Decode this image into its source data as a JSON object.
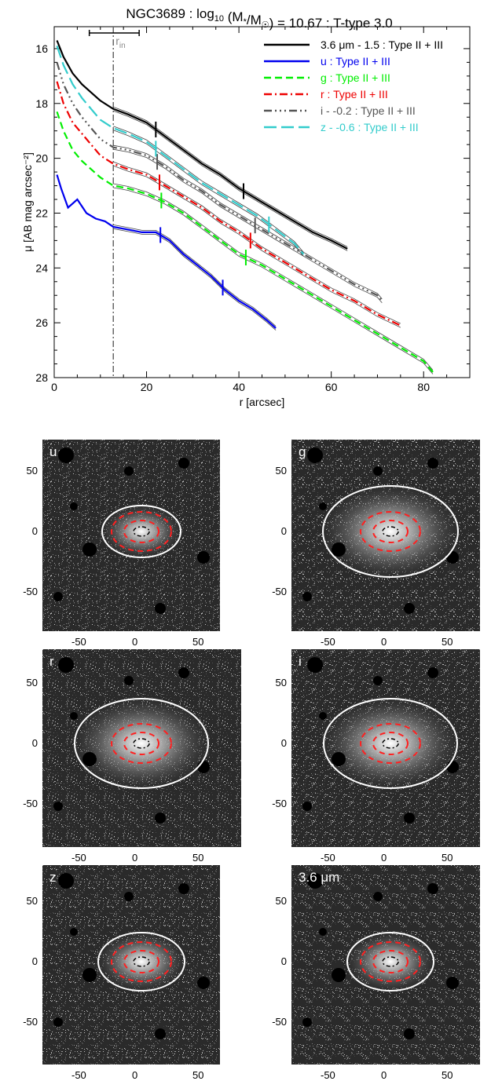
{
  "chart_data": [
    {
      "type": "line",
      "title": "NGC3689 : log10 (M*/M☉) = 10.67 : T-type 3.0",
      "title_parts": {
        "pre": "NGC3689 : log",
        "sub": "10",
        "mid": " (M",
        "sub2": "*",
        "mid2": "/M",
        "sub3": "☉",
        "post": ") = 10.67 : T-type 3.0"
      },
      "xlabel": "r [arcsec]",
      "ylabel": "μ [AB mag arcsec⁻²]",
      "xlim": [
        0,
        90
      ],
      "ylim": [
        28,
        15.2
      ],
      "y_inverted": true,
      "xticks": [
        0,
        20,
        40,
        60,
        80
      ],
      "yticks": [
        16,
        18,
        20,
        22,
        24,
        26,
        28
      ],
      "r_in": {
        "label": "r",
        "sub": "in",
        "value": 12.8,
        "bar": [
          7.6,
          18.4
        ]
      },
      "series": [
        {
          "name": "3.6 μm - 1.5 : Type II + III",
          "color": "#000000",
          "dash": "solid",
          "breaks": [
            22.0,
            41.0
          ],
          "x": [
            0.6,
            2,
            4,
            6,
            8,
            10,
            12.8,
            16,
            20,
            24,
            28,
            32,
            36,
            40,
            44,
            48,
            52,
            56,
            60,
            63.5
          ],
          "y": [
            15.7,
            16.3,
            16.9,
            17.3,
            17.6,
            17.9,
            18.2,
            18.4,
            18.7,
            19.2,
            19.7,
            20.2,
            20.6,
            21.1,
            21.5,
            21.9,
            22.3,
            22.7,
            23.0,
            23.3
          ]
        },
        {
          "name": "u : Type II + III",
          "color": "#0000ee",
          "dash": "solid",
          "breaks": [
            23.0,
            36.5
          ],
          "x": [
            0.6,
            1.5,
            3,
            5,
            7,
            9,
            11,
            12.8,
            16,
            19,
            22,
            25,
            28,
            31,
            34,
            37,
            40,
            43,
            46,
            48
          ],
          "y": [
            20.6,
            21.1,
            21.8,
            21.5,
            22.0,
            22.2,
            22.3,
            22.5,
            22.6,
            22.7,
            22.7,
            23.0,
            23.5,
            23.9,
            24.3,
            24.8,
            25.2,
            25.5,
            25.9,
            26.2
          ]
        },
        {
          "name": "g : Type II + III",
          "color": "#00ee00",
          "dash": "dashed",
          "breaks": [
            23.2,
            41.5
          ],
          "x": [
            0.6,
            2,
            4,
            6,
            8,
            10,
            12.8,
            16,
            20,
            24,
            28,
            32,
            36,
            40,
            45,
            50,
            55,
            60,
            65,
            70,
            75,
            80,
            82
          ],
          "y": [
            18.3,
            19.0,
            19.7,
            20.1,
            20.4,
            20.7,
            21.0,
            21.1,
            21.3,
            21.6,
            22.0,
            22.5,
            23.0,
            23.5,
            23.9,
            24.4,
            24.9,
            25.4,
            25.9,
            26.4,
            26.9,
            27.4,
            27.8
          ]
        },
        {
          "name": "r : Type II + III",
          "color": "#ee0000",
          "dash": "dashdot",
          "breaks": [
            22.8,
            42.5
          ],
          "x": [
            0.6,
            2,
            4,
            6,
            8,
            10,
            12.8,
            16,
            20,
            24,
            28,
            32,
            36,
            40,
            45,
            50,
            55,
            60,
            65,
            70,
            75
          ],
          "y": [
            17.2,
            18.0,
            18.7,
            19.1,
            19.5,
            19.9,
            20.2,
            20.4,
            20.6,
            21.0,
            21.4,
            21.8,
            22.3,
            22.7,
            23.3,
            23.8,
            24.3,
            24.8,
            25.2,
            25.7,
            26.1
          ]
        },
        {
          "name": "i - -0.2 : Type II + III",
          "color": "#555555",
          "dash": "dashdotdotdot",
          "breaks": [
            22.3,
            43.5
          ],
          "x": [
            0.6,
            2,
            4,
            6,
            8,
            10,
            12.8,
            16,
            20,
            24,
            28,
            32,
            36,
            40,
            45,
            50,
            55,
            60,
            65,
            70,
            71
          ],
          "y": [
            16.5,
            17.3,
            18.0,
            18.5,
            18.9,
            19.3,
            19.6,
            19.7,
            19.9,
            20.3,
            20.8,
            21.2,
            21.7,
            22.1,
            22.6,
            23.1,
            23.6,
            24.1,
            24.6,
            25.0,
            25.2
          ]
        },
        {
          "name": "z - -0.6 : Type II + III",
          "color": "#33cccc",
          "dash": "longdash",
          "breaks": [
            22.0,
            46.5
          ],
          "x": [
            0.6,
            2,
            4,
            6,
            8,
            10,
            12.8,
            16,
            20,
            24,
            28,
            32,
            36,
            40,
            44,
            48,
            52,
            54
          ],
          "y": [
            15.9,
            16.6,
            17.3,
            17.8,
            18.2,
            18.6,
            18.9,
            19.1,
            19.4,
            19.9,
            20.4,
            20.9,
            21.3,
            21.7,
            22.1,
            22.6,
            23.1,
            23.5
          ]
        }
      ]
    },
    {
      "type": "image",
      "description": "six band images with elliptical apertures",
      "axis_ticks": {
        "x": [
          "-50",
          "0",
          "50"
        ],
        "y": [
          "50",
          "0",
          "-50"
        ]
      },
      "panels": [
        {
          "label": "u",
          "outer_ellipse": {
            "a": 50,
            "b": 33
          },
          "red_ellipses": [
            {
              "a": 38,
              "b": 25
            },
            {
              "a": 22,
              "b": 14
            }
          ],
          "center_ellipse": {
            "a": 10,
            "b": 6
          }
        },
        {
          "label": "g",
          "outer_ellipse": {
            "a": 86,
            "b": 58
          },
          "red_ellipses": [
            {
              "a": 38,
              "b": 25
            },
            {
              "a": 22,
              "b": 14
            }
          ],
          "center_ellipse": {
            "a": 10,
            "b": 6
          }
        },
        {
          "label": "r",
          "outer_ellipse": {
            "a": 85,
            "b": 57
          },
          "red_ellipses": [
            {
              "a": 38,
              "b": 25
            },
            {
              "a": 22,
              "b": 14
            }
          ],
          "center_ellipse": {
            "a": 10,
            "b": 6
          }
        },
        {
          "label": "i",
          "outer_ellipse": {
            "a": 85,
            "b": 57
          },
          "red_ellipses": [
            {
              "a": 38,
              "b": 25
            },
            {
              "a": 22,
              "b": 14
            }
          ],
          "center_ellipse": {
            "a": 10,
            "b": 6
          }
        },
        {
          "label": "z",
          "outer_ellipse": {
            "a": 55,
            "b": 37
          },
          "red_ellipses": [
            {
              "a": 38,
              "b": 25
            },
            {
              "a": 22,
              "b": 14
            }
          ],
          "center_ellipse": {
            "a": 10,
            "b": 6
          }
        },
        {
          "label": "3.6 μm",
          "outer_ellipse": {
            "a": 55,
            "b": 37
          },
          "red_ellipses": [
            {
              "a": 38,
              "b": 25
            },
            {
              "a": 22,
              "b": 14
            }
          ],
          "center_ellipse": {
            "a": 10,
            "b": 6
          }
        }
      ]
    }
  ]
}
